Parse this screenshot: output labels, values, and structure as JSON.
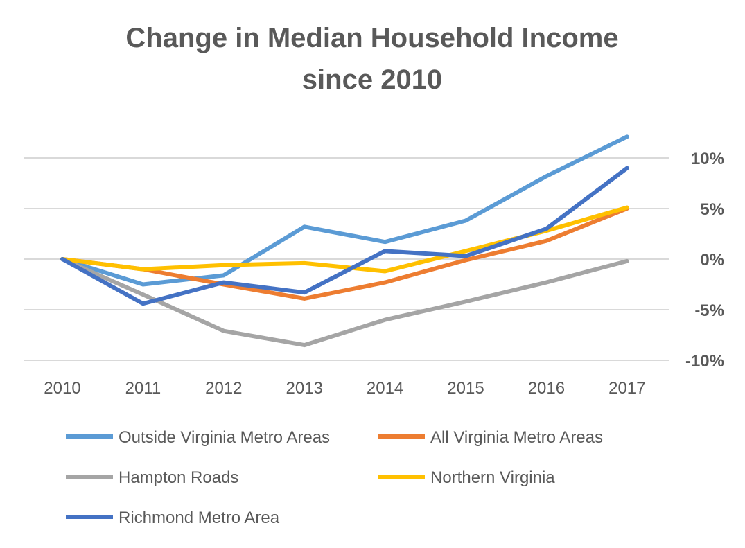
{
  "chart_data": {
    "type": "line",
    "title_lines": [
      "Change in Median Household Income",
      "since 2010"
    ],
    "x": [
      "2010",
      "2011",
      "2012",
      "2013",
      "2014",
      "2015",
      "2016",
      "2017"
    ],
    "ylim": [
      -10,
      10
    ],
    "yticks": [
      10,
      5,
      0,
      -5,
      -10
    ],
    "ytick_labels": [
      "10%",
      "5%",
      "0%",
      "-5%",
      "-10%"
    ],
    "y_axis_side": "right",
    "grid": true,
    "legend_placement": "bottom",
    "series": [
      {
        "name": "Outside Virginia Metro Areas",
        "color": "#5B9BD5",
        "values": [
          0,
          -2.5,
          -1.6,
          3.2,
          1.7,
          3.8,
          8.2,
          12.1
        ]
      },
      {
        "name": "All Virginia Metro Areas",
        "color": "#ED7D31",
        "values": [
          0,
          -1.0,
          -2.5,
          -3.9,
          -2.3,
          -0.1,
          1.8,
          5.0
        ]
      },
      {
        "name": "Hampton Roads",
        "color": "#A5A5A5",
        "values": [
          0,
          -3.5,
          -7.1,
          -8.5,
          -6.0,
          -4.2,
          -2.3,
          -0.2
        ]
      },
      {
        "name": "Northern Virginia",
        "color": "#FFC000",
        "values": [
          0,
          -1.0,
          -0.6,
          -0.4,
          -1.2,
          0.8,
          2.8,
          5.1
        ]
      },
      {
        "name": "Richmond Metro Area",
        "color": "#4472C4",
        "values": [
          0,
          -4.4,
          -2.3,
          -3.3,
          0.8,
          0.3,
          3.0,
          9.0
        ]
      }
    ]
  }
}
